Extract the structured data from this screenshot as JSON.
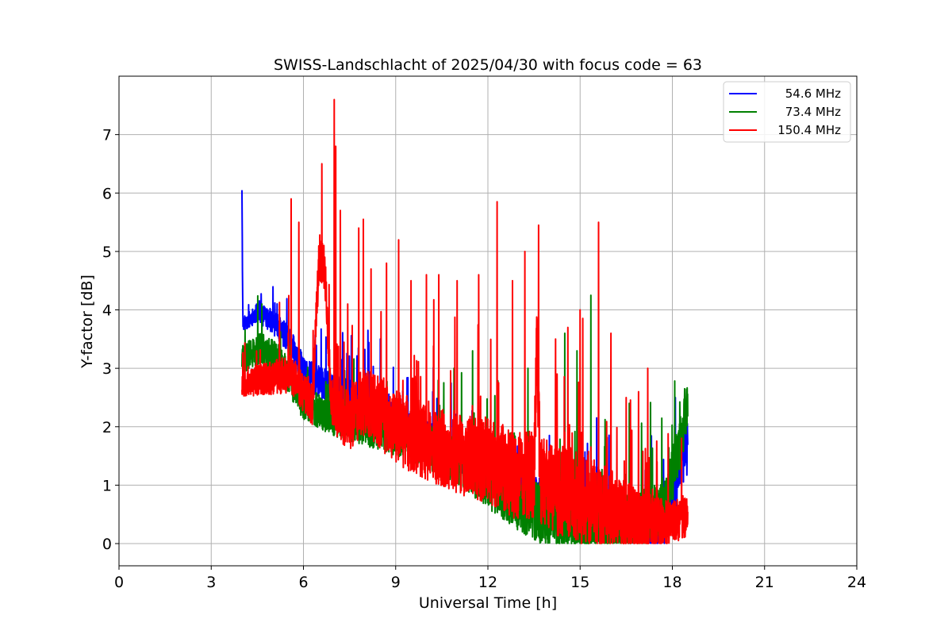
{
  "chart_data": {
    "type": "line",
    "title": "SWISS-Landschlacht of 2025/04/30 with focus code = 63",
    "xlabel": "Universal Time [h]",
    "ylabel": "Y-factor [dB]",
    "xlim": [
      0,
      24
    ],
    "ylim": [
      -0.38,
      8.0
    ],
    "xticks": [
      0,
      3,
      6,
      9,
      12,
      15,
      18,
      21,
      24
    ],
    "xtick_labels": [
      "0",
      "3",
      "6",
      "9",
      "12",
      "15",
      "18",
      "21",
      "24"
    ],
    "yticks": [
      0,
      1,
      2,
      3,
      4,
      5,
      6,
      7
    ],
    "ytick_labels": [
      "0",
      "1",
      "2",
      "3",
      "4",
      "5",
      "6",
      "7"
    ],
    "grid": true,
    "legend_position": "top-right",
    "series": [
      {
        "name": "54.6 MHz",
        "color": "#0000ff",
        "base": [
          [
            4.0,
            6.05
          ],
          [
            4.03,
            3.75
          ],
          [
            4.5,
            3.95
          ],
          [
            5.0,
            3.8
          ],
          [
            5.5,
            3.5
          ],
          [
            6.0,
            2.95
          ],
          [
            7.0,
            2.6
          ],
          [
            8.0,
            2.4
          ],
          [
            9.0,
            2.1
          ],
          [
            10.0,
            1.8
          ],
          [
            11.0,
            1.5
          ],
          [
            12.0,
            1.2
          ],
          [
            13.0,
            0.9
          ],
          [
            14.0,
            0.75
          ],
          [
            15.0,
            0.6
          ],
          [
            16.0,
            0.5
          ],
          [
            17.0,
            0.3
          ],
          [
            17.8,
            0.4
          ],
          [
            18.2,
            1.3
          ],
          [
            18.5,
            1.7
          ]
        ],
        "noise": [
          [
            4.0,
            0.12
          ],
          [
            5.5,
            0.25
          ],
          [
            7.0,
            0.3
          ],
          [
            12.0,
            0.3
          ],
          [
            16.0,
            0.4
          ],
          [
            18.5,
            0.5
          ]
        ],
        "peaks": [
          [
            4.0,
            6.05
          ],
          [
            8.5,
            3.5
          ],
          [
            8.1,
            3.65
          ],
          [
            12.9,
            1.7
          ],
          [
            14.0,
            1.85
          ],
          [
            18.1,
            2.5
          ]
        ]
      },
      {
        "name": "73.4 MHz",
        "color": "#008000",
        "base": [
          [
            4.0,
            3.15
          ],
          [
            4.6,
            3.35
          ],
          [
            5.2,
            3.15
          ],
          [
            6.0,
            2.4
          ],
          [
            7.0,
            2.15
          ],
          [
            8.0,
            2.0
          ],
          [
            9.0,
            1.85
          ],
          [
            10.0,
            1.65
          ],
          [
            11.0,
            1.45
          ],
          [
            12.0,
            1.05
          ],
          [
            13.0,
            0.7
          ],
          [
            14.0,
            0.45
          ],
          [
            15.0,
            0.35
          ],
          [
            16.0,
            0.3
          ],
          [
            17.0,
            0.4
          ],
          [
            17.8,
            0.7
          ],
          [
            18.2,
            1.6
          ],
          [
            18.5,
            2.3
          ]
        ],
        "noise": [
          [
            4.0,
            0.25
          ],
          [
            6.0,
            0.3
          ],
          [
            9.0,
            0.35
          ],
          [
            12.0,
            0.45
          ],
          [
            14.5,
            0.55
          ],
          [
            17.0,
            0.5
          ],
          [
            18.5,
            0.45
          ]
        ],
        "peaks": [
          [
            14.5,
            3.6
          ],
          [
            15.35,
            4.25
          ],
          [
            11.5,
            3.3
          ],
          [
            13.3,
            3.0
          ],
          [
            14.9,
            3.3
          ],
          [
            16.6,
            2.4
          ],
          [
            18.4,
            2.65
          ],
          [
            10.9,
            3.0
          ]
        ]
      },
      {
        "name": "150.4 MHz",
        "color": "#ff0000",
        "base": [
          [
            4.0,
            2.75
          ],
          [
            5.0,
            2.85
          ],
          [
            5.6,
            2.9
          ],
          [
            6.0,
            2.6
          ],
          [
            6.3,
            2.4
          ],
          [
            6.5,
            4.9
          ],
          [
            6.7,
            4.7
          ],
          [
            6.9,
            2.4
          ],
          [
            7.0,
            2.3
          ],
          [
            7.5,
            2.1
          ],
          [
            8.0,
            2.45
          ],
          [
            9.0,
            2.0
          ],
          [
            10.0,
            1.75
          ],
          [
            11.0,
            1.55
          ],
          [
            12.0,
            1.4
          ],
          [
            13.0,
            1.15
          ],
          [
            13.5,
            1.2
          ],
          [
            13.6,
            3.5
          ],
          [
            13.7,
            1.1
          ],
          [
            14.0,
            0.95
          ],
          [
            15.0,
            0.8
          ],
          [
            16.0,
            0.6
          ],
          [
            16.5,
            0.45
          ],
          [
            17.0,
            0.35
          ],
          [
            17.8,
            0.3
          ],
          [
            18.2,
            0.4
          ],
          [
            18.5,
            0.5
          ]
        ],
        "noise": [
          [
            4.0,
            0.25
          ],
          [
            6.0,
            0.35
          ],
          [
            8.0,
            0.6
          ],
          [
            12.0,
            0.75
          ],
          [
            15.0,
            0.8
          ],
          [
            17.0,
            0.55
          ],
          [
            18.5,
            0.35
          ]
        ],
        "peaks": [
          [
            5.6,
            5.9
          ],
          [
            5.85,
            5.5
          ],
          [
            6.6,
            6.5
          ],
          [
            7.0,
            7.6
          ],
          [
            7.05,
            6.8
          ],
          [
            7.2,
            5.7
          ],
          [
            7.8,
            5.4
          ],
          [
            7.95,
            5.55
          ],
          [
            8.2,
            4.7
          ],
          [
            8.7,
            4.8
          ],
          [
            9.1,
            5.2
          ],
          [
            9.5,
            4.5
          ],
          [
            10.0,
            4.6
          ],
          [
            10.4,
            4.6
          ],
          [
            11.0,
            4.5
          ],
          [
            11.7,
            4.6
          ],
          [
            12.3,
            5.85
          ],
          [
            12.8,
            4.5
          ],
          [
            13.2,
            5.0
          ],
          [
            13.65,
            5.45
          ],
          [
            14.2,
            3.5
          ],
          [
            14.6,
            3.7
          ],
          [
            15.0,
            4.0
          ],
          [
            15.6,
            5.5
          ],
          [
            16.0,
            3.6
          ],
          [
            16.5,
            2.5
          ],
          [
            16.9,
            2.6
          ],
          [
            17.2,
            3.0
          ],
          [
            17.5,
            1.4
          ]
        ]
      }
    ]
  }
}
